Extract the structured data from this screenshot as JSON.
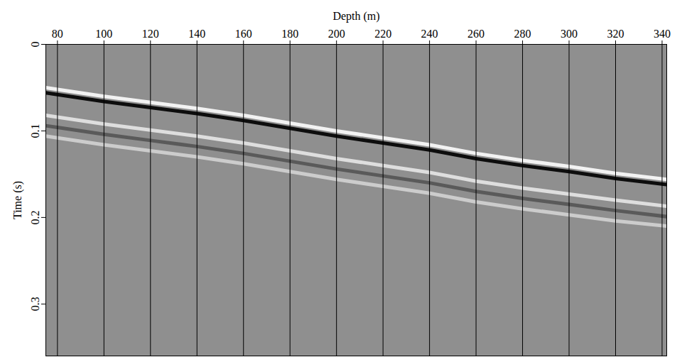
{
  "chart_data": {
    "type": "line",
    "x_label": "Depth (m)",
    "y_label": "Time (s)",
    "x": [
      75,
      80,
      100,
      120,
      140,
      160,
      180,
      200,
      220,
      240,
      260,
      280,
      300,
      320,
      342
    ],
    "series": [
      {
        "color": "#f2f2f2",
        "values": [
          0.05,
          0.052,
          0.06,
          0.067,
          0.074,
          0.082,
          0.091,
          0.1,
          0.108,
          0.116,
          0.126,
          0.134,
          0.141,
          0.149,
          0.156
        ]
      },
      {
        "color": "#0d0d0d",
        "values": [
          0.056,
          0.058,
          0.066,
          0.073,
          0.08,
          0.088,
          0.097,
          0.106,
          0.114,
          0.122,
          0.132,
          0.14,
          0.147,
          0.155,
          0.162
        ]
      },
      {
        "color": "#dedede",
        "values": [
          0.082,
          0.084,
          0.092,
          0.099,
          0.106,
          0.114,
          0.123,
          0.132,
          0.14,
          0.148,
          0.158,
          0.166,
          0.173,
          0.18,
          0.187
        ]
      },
      {
        "color": "#5a5a5a",
        "values": [
          0.094,
          0.096,
          0.104,
          0.111,
          0.118,
          0.126,
          0.135,
          0.144,
          0.152,
          0.16,
          0.17,
          0.178,
          0.185,
          0.192,
          0.199
        ]
      },
      {
        "color": "#cccccc",
        "values": [
          0.106,
          0.108,
          0.116,
          0.123,
          0.13,
          0.138,
          0.147,
          0.156,
          0.164,
          0.172,
          0.182,
          0.19,
          0.197,
          0.204,
          0.21
        ]
      }
    ],
    "xlim": [
      75,
      342
    ],
    "xticks": [
      80,
      100,
      120,
      140,
      160,
      180,
      200,
      220,
      240,
      260,
      280,
      300,
      320,
      340
    ],
    "ylim": [
      0,
      0.36
    ],
    "yticks": [
      0,
      0.1,
      0.2,
      0.3
    ],
    "grid": "x"
  }
}
